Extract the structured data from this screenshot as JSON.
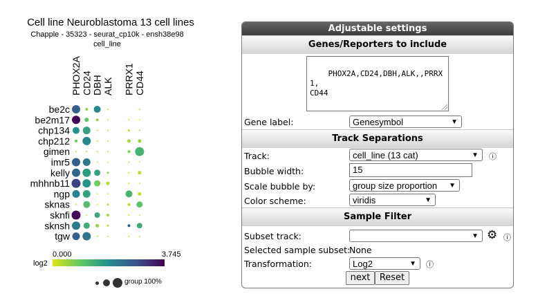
{
  "plot": {
    "title": "Cell line Neuroblastoma 13 cell lines",
    "subtitle": "Chapple - 35323 - seurat_cp10k - ensh38e98",
    "track_name": "cell_line",
    "colorbar": {
      "min": "0.000",
      "max": "3.745",
      "label": "log2"
    },
    "size_legend": "group 100%"
  },
  "chart_data": {
    "type": "bubble",
    "genes": [
      "PHOX2A",
      "CD24",
      "DBH",
      "ALK",
      "",
      "PRRX1",
      "CD44"
    ],
    "cell_lines": [
      "be2c",
      "be2m17",
      "chp134",
      "chp212",
      "gimen",
      "imr5",
      "kelly",
      "mhhnb11",
      "ngp",
      "sknas",
      "sknfi",
      "sknsh",
      "tgw"
    ],
    "expression": [
      [
        2.6,
        0.6,
        2.0,
        0,
        null,
        0,
        0.1
      ],
      [
        3.7,
        1.0,
        0.5,
        0,
        null,
        0,
        0
      ],
      [
        1.9,
        1.6,
        0,
        0,
        null,
        0.2,
        0
      ],
      [
        0.9,
        2.0,
        0,
        0,
        null,
        0.4,
        0.5
      ],
      [
        0,
        0.3,
        0,
        0,
        null,
        0.7,
        1.3
      ],
      [
        2.6,
        2.3,
        0,
        0,
        null,
        0,
        0
      ],
      [
        2.5,
        1.7,
        1.6,
        0.6,
        null,
        0,
        0.3
      ],
      [
        3.0,
        1.8,
        0.8,
        0.3,
        null,
        0,
        0
      ],
      [
        2.1,
        1.6,
        0,
        0,
        null,
        1.3,
        0.2
      ],
      [
        0.1,
        1.1,
        0,
        0.2,
        null,
        0.3,
        1.0
      ],
      [
        3.7,
        0,
        1.5,
        0.4,
        null,
        0,
        0
      ],
      [
        2.2,
        1.4,
        0.5,
        0.1,
        null,
        2.6,
        1.4
      ],
      [
        2.6,
        2.3,
        0,
        0,
        null,
        0,
        0
      ]
    ],
    "size": [
      [
        12,
        4,
        10,
        1,
        0,
        0,
        2
      ],
      [
        12,
        6,
        4,
        1,
        0,
        1,
        1
      ],
      [
        10,
        11,
        2,
        1,
        0,
        3,
        1
      ],
      [
        4,
        12,
        1,
        1,
        0,
        5,
        5
      ],
      [
        1,
        2,
        1,
        1,
        0,
        4,
        13
      ],
      [
        12,
        11,
        2,
        1,
        0,
        1,
        1
      ],
      [
        12,
        12,
        9,
        3,
        0,
        1,
        5
      ],
      [
        13,
        12,
        9,
        5,
        0,
        1,
        1
      ],
      [
        11,
        11,
        1,
        1,
        0,
        10,
        5
      ],
      [
        2,
        10,
        2,
        3,
        0,
        4,
        9
      ],
      [
        13,
        1,
        8,
        4,
        0,
        1,
        1
      ],
      [
        12,
        9,
        5,
        3,
        0,
        4,
        8
      ],
      [
        11,
        12,
        2,
        1,
        0,
        1,
        1
      ]
    ],
    "color_scale": "viridis",
    "vmin": 0,
    "vmax": 3.745
  },
  "panel": {
    "header": "Adjustable settings",
    "genes_section": "Genes/Reporters to include",
    "genes_value": "PHOX2A,CD24,DBH,ALK,,PRRX1,\nCD44",
    "gene_label": {
      "label": "Gene label:",
      "value": "Genesymbol"
    },
    "track_section": "Track Separations",
    "track": {
      "label": "Track:",
      "value": "cell_line (13 cat)"
    },
    "bubble_width": {
      "label": "Bubble width:",
      "value": "15"
    },
    "scale_by": {
      "label": "Scale bubble by:",
      "value": "group size proportion"
    },
    "color_scheme": {
      "label": "Color scheme:",
      "value": "viridis"
    },
    "sample_section": "Sample Filter",
    "subset_track": {
      "label": "Subset track:",
      "value": ""
    },
    "selected_subset": {
      "label": "Selected sample subset:",
      "value": "None"
    },
    "transformation": {
      "label": "Transformation:",
      "value": "Log2"
    },
    "next_button": "next",
    "reset_button": "Reset"
  }
}
